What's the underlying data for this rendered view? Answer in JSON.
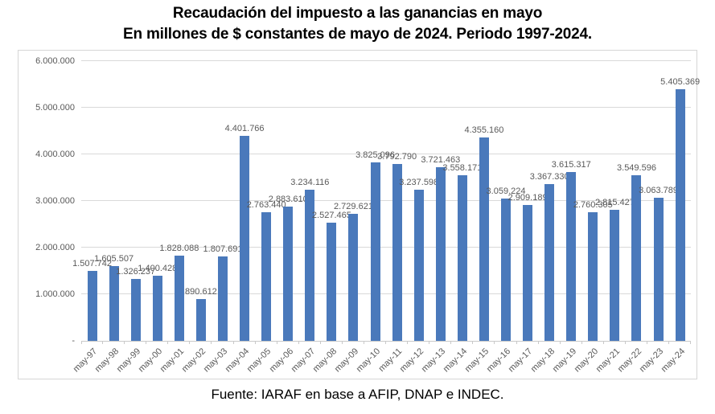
{
  "title": {
    "line1": "Recaudación del impuesto a las ganancias en mayo",
    "line2": "En millones de $ constantes de mayo de 2024. Periodo 1997-2024."
  },
  "footer": {
    "text": "Fuente: IARAF en base a AFIP, DNAP e INDEC."
  },
  "chart_data": {
    "type": "bar",
    "title": "Recaudación del impuesto a las ganancias en mayo",
    "subtitle": "En millones de $ constantes de mayo de 2024. Periodo 1997-2024.",
    "xlabel": "",
    "ylabel": "",
    "categories": [
      "may-97",
      "may-98",
      "may-99",
      "may-00",
      "may-01",
      "may-02",
      "may-03",
      "may-04",
      "may-05",
      "may-06",
      "may-07",
      "may-08",
      "may-09",
      "may-10",
      "may-11",
      "may-12",
      "may-13",
      "may-14",
      "may-15",
      "may-16",
      "may-17",
      "may-18",
      "may-19",
      "may-20",
      "may-21",
      "may-22",
      "may-23",
      "may-24"
    ],
    "values": [
      1507742,
      1605507,
      1326237,
      1400428,
      1828088,
      890612,
      1807691,
      4401766,
      2763440,
      2883610,
      3234116,
      2527465,
      2729621,
      3825096,
      3792790,
      3237598,
      3721463,
      3558171,
      4355160,
      3059224,
      2909189,
      3367330,
      3615317,
      2760305,
      2815427,
      3549596,
      3063789,
      5405369
    ],
    "data_labels": [
      "1.507.742",
      "1.605.507",
      "1.326.237",
      "1.400.428",
      "1.828.088",
      "890.612",
      "1.807.691",
      "4.401.766",
      "2.763.440",
      "2.883.610",
      "3.234.116",
      "2.527.465",
      "2.729.621",
      "3.825.096",
      "3.792.790",
      "3.237.598",
      "3.721.463",
      "3.558.171",
      "4.355.160",
      "3.059.224",
      "2.909.189",
      "3.367.330",
      "3.615.317",
      "2.760.305",
      "2.815.427",
      "3.549.596",
      "3.063.789",
      "5.405.369"
    ],
    "ylim": [
      0,
      6000000
    ],
    "ytick_interval": 1000000,
    "ytick_labels": [
      "-",
      "1.000.000",
      "2.000.000",
      "3.000.000",
      "4.000.000",
      "5.000.000",
      "6.000.000"
    ],
    "grid": true,
    "legend": false,
    "bar_color": "#4A79BB",
    "label_color": "#595959",
    "gridline_color": "#D9D9D9",
    "source": "Fuente: IARAF en base a AFIP, DNAP e INDEC."
  }
}
